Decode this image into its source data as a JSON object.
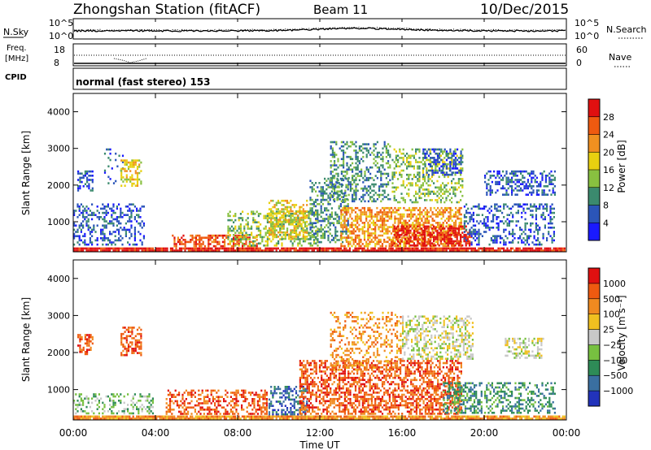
{
  "header": {
    "station": "Zhongshan Station (fitACF)",
    "beam": "Beam 11",
    "date": "10/Dec/2015"
  },
  "noise_panel": {
    "left_label": "N.Sky",
    "right_label": "N.Search",
    "left_ticks": [
      "10^5",
      "10^0"
    ],
    "right_ticks": [
      "10^5",
      "10^0"
    ]
  },
  "freq_panel": {
    "left_label_top": "Freq.",
    "left_label_bottom": "[MHz]",
    "left_ticks": [
      "18",
      "8"
    ],
    "right_label": "Nave",
    "right_ticks": [
      "60",
      "0"
    ]
  },
  "cpid_panel": {
    "label": "CPID",
    "value": "normal (fast stereo) 153"
  },
  "x_axis": {
    "label": "Time UT",
    "ticks": [
      "00:00",
      "04:00",
      "08:00",
      "12:00",
      "16:00",
      "20:00",
      "00:00"
    ]
  },
  "icons": [
    "dotted-line-legend-icon"
  ],
  "chart_data": [
    {
      "type": "heatmap",
      "name": "power-panel",
      "xlabel": "Time UT",
      "ylabel": "Slant Range [km]",
      "xlim": [
        0,
        24
      ],
      "ylim": [
        180,
        4500
      ],
      "yticks": [
        "1000",
        "2000",
        "3000",
        "4000"
      ],
      "colorbar": {
        "label": "Power [dB]",
        "ticks": [
          "4",
          "8",
          "12",
          "16",
          "20",
          "24",
          "28"
        ],
        "colors": [
          "#1a1aff",
          "#2b55b8",
          "#3b8a6e",
          "#88c040",
          "#e8d010",
          "#f09020",
          "#ef5a10",
          "#e01010"
        ]
      },
      "regions": [
        {
          "t0": 0.0,
          "t1": 24.0,
          "r0": 180,
          "r1": 300,
          "level": 7,
          "density": 0.9
        },
        {
          "t0": 0.0,
          "t1": 3.5,
          "r0": 300,
          "r1": 1500,
          "level": 1,
          "density": 0.35
        },
        {
          "t0": 0.2,
          "t1": 1.0,
          "r0": 1800,
          "r1": 2400,
          "level": 1,
          "density": 0.45
        },
        {
          "t0": 1.5,
          "t1": 2.5,
          "r0": 2000,
          "r1": 3000,
          "level": 1,
          "density": 0.15
        },
        {
          "t0": 2.3,
          "t1": 3.4,
          "r0": 1900,
          "r1": 2700,
          "level": 4,
          "density": 0.55
        },
        {
          "t0": 4.8,
          "t1": 9.0,
          "r0": 300,
          "r1": 650,
          "level": 6,
          "density": 0.55
        },
        {
          "t0": 7.5,
          "t1": 12.0,
          "r0": 300,
          "r1": 1300,
          "level": 3,
          "density": 0.4
        },
        {
          "t0": 9.5,
          "t1": 11.5,
          "r0": 500,
          "r1": 1600,
          "level": 4,
          "density": 0.5
        },
        {
          "t0": 11.5,
          "t1": 13.5,
          "r0": 400,
          "r1": 2200,
          "level": 2,
          "density": 0.4
        },
        {
          "t0": 12.5,
          "t1": 15.5,
          "r0": 1500,
          "r1": 3200,
          "level": 2,
          "density": 0.35
        },
        {
          "t0": 13.0,
          "t1": 19.0,
          "r0": 300,
          "r1": 1400,
          "level": 5,
          "density": 0.6
        },
        {
          "t0": 15.5,
          "t1": 19.5,
          "r0": 300,
          "r1": 900,
          "level": 7,
          "density": 0.55
        },
        {
          "t0": 15.5,
          "t1": 19.0,
          "r0": 1500,
          "r1": 3000,
          "level": 3,
          "density": 0.35
        },
        {
          "t0": 17.0,
          "t1": 19.0,
          "r0": 2200,
          "r1": 3000,
          "level": 1,
          "density": 0.45
        },
        {
          "t0": 19.0,
          "t1": 23.5,
          "r0": 300,
          "r1": 1500,
          "level": 1,
          "density": 0.35
        },
        {
          "t0": 20.0,
          "t1": 23.5,
          "r0": 1700,
          "r1": 2400,
          "level": 1,
          "density": 0.45
        }
      ]
    },
    {
      "type": "heatmap",
      "name": "velocity-panel",
      "xlabel": "Time UT",
      "ylabel": "Slant Range [km]",
      "xlim": [
        0,
        24
      ],
      "ylim": [
        180,
        4500
      ],
      "yticks": [
        "1000",
        "2000",
        "3000",
        "4000"
      ],
      "colorbar": {
        "label": "Velocity [m s⁻¹]",
        "ticks": [
          "1000",
          "500",
          "100",
          "25",
          "−25",
          "−100",
          "−500",
          "−1000"
        ],
        "colors": [
          "#2233bb",
          "#3a6fa0",
          "#2e8b57",
          "#77c040",
          "#c8c8c8",
          "#f0c020",
          "#f08a20",
          "#ef5a10",
          "#e01010"
        ]
      },
      "regions": [
        {
          "t0": 0.0,
          "t1": 24.0,
          "r0": 180,
          "r1": 300,
          "level": 6,
          "density": 0.9
        },
        {
          "t0": 0.0,
          "t1": 4.0,
          "r0": 300,
          "r1": 900,
          "level": 3,
          "density": 0.35
        },
        {
          "t0": 0.2,
          "t1": 1.0,
          "r0": 1900,
          "r1": 2500,
          "level": 7,
          "density": 0.45
        },
        {
          "t0": 2.3,
          "t1": 3.4,
          "r0": 1900,
          "r1": 2700,
          "level": 7,
          "density": 0.5
        },
        {
          "t0": 4.5,
          "t1": 9.5,
          "r0": 300,
          "r1": 1000,
          "level": 7,
          "density": 0.4
        },
        {
          "t0": 9.5,
          "t1": 11.5,
          "r0": 300,
          "r1": 1100,
          "level": 1,
          "density": 0.45
        },
        {
          "t0": 11.0,
          "t1": 19.0,
          "r0": 300,
          "r1": 1800,
          "level": 7,
          "density": 0.55
        },
        {
          "t0": 12.5,
          "t1": 16.0,
          "r0": 1500,
          "r1": 3100,
          "level": 6,
          "density": 0.3
        },
        {
          "t0": 16.0,
          "t1": 19.5,
          "r0": 1800,
          "r1": 3000,
          "level": 4,
          "density": 0.45
        },
        {
          "t0": 18.0,
          "t1": 20.0,
          "r0": 300,
          "r1": 1200,
          "level": 2,
          "density": 0.5
        },
        {
          "t0": 20.0,
          "t1": 23.5,
          "r0": 300,
          "r1": 1200,
          "level": 2,
          "density": 0.4
        },
        {
          "t0": 21.0,
          "t1": 23.0,
          "r0": 1800,
          "r1": 2400,
          "level": 4,
          "density": 0.45
        }
      ]
    }
  ]
}
